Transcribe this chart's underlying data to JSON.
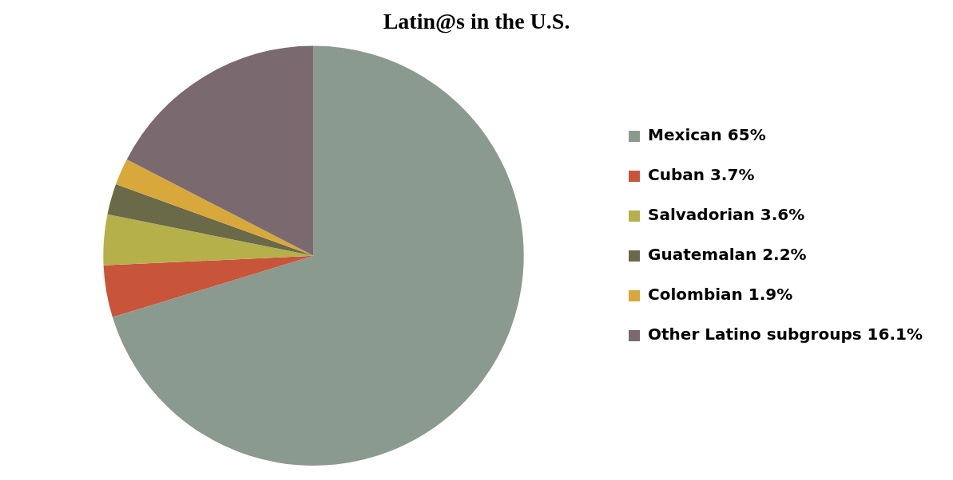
{
  "chart_data": {
    "type": "pie",
    "title": "Latin@s in the U.S.",
    "categories": [
      "Mexican",
      "Cuban",
      "Salvadorian",
      "Guatemalan",
      "Colombian",
      "Other Latino subgroups"
    ],
    "values": [
      65,
      3.7,
      3.6,
      2.2,
      1.9,
      16.1
    ],
    "value_labels": [
      "65%",
      "3.7%",
      "3.6%",
      "2.2%",
      "1.9%",
      "16.1%"
    ],
    "colors": [
      "#8a9a8f",
      "#c8553a",
      "#b5b04a",
      "#6b6a48",
      "#d9a83a",
      "#7a6a70"
    ],
    "legend": "right"
  }
}
